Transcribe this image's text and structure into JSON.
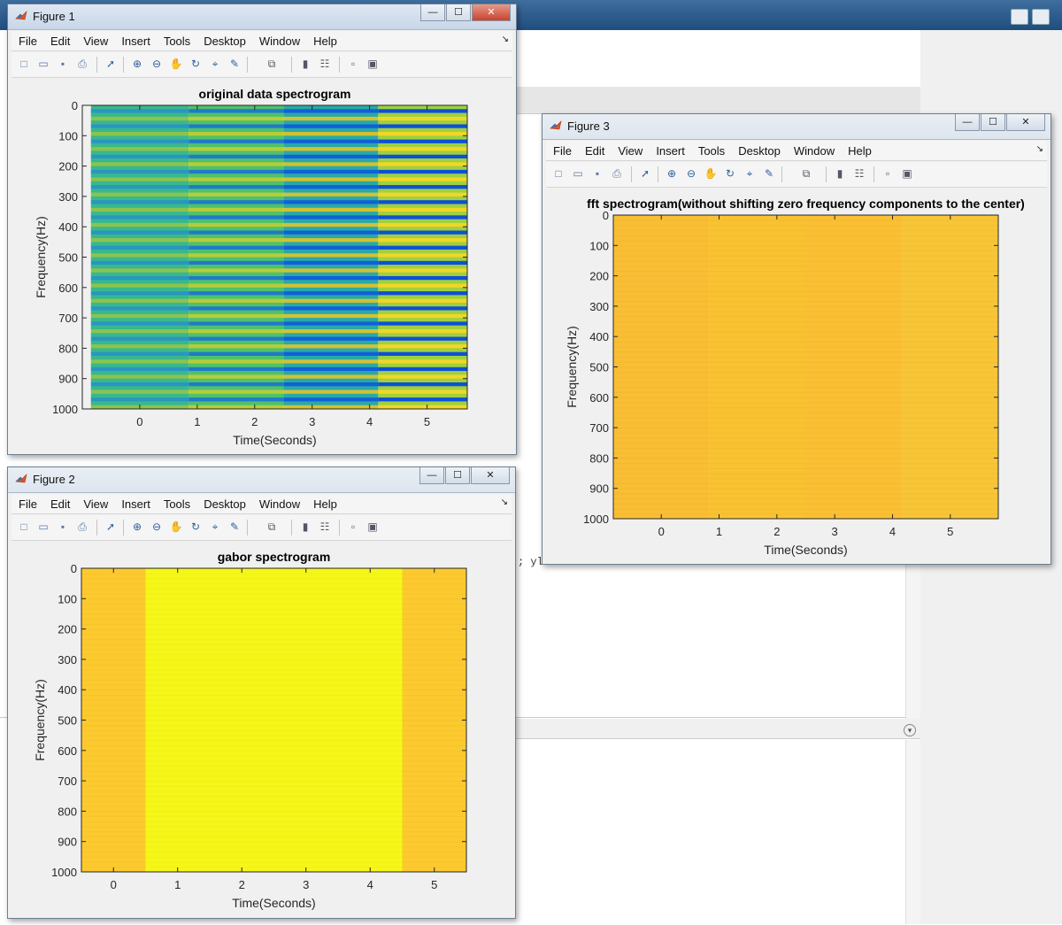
{
  "menu": [
    "File",
    "Edit",
    "View",
    "Insert",
    "Tools",
    "Desktop",
    "Window",
    "Help"
  ],
  "toolbar_icons": [
    "new-figure-icon",
    "open-file-icon",
    "save-icon",
    "print-icon",
    "pointer-icon",
    "zoom-in-icon",
    "zoom-out-icon",
    "pan-icon",
    "rotate-3d-icon",
    "data-cursor-icon",
    "brush-icon",
    "link-plot-icon",
    "colorbar-icon",
    "legend-icon",
    "hide-plot-tools-icon",
    "show-plot-tools-icon"
  ],
  "background": {
    "code_fragment": "; yl"
  },
  "figures": [
    {
      "window_title": "Figure 1",
      "active": true,
      "chart_data": {
        "type": "heatmap",
        "title": "original data spectrogram",
        "xlabel": "Time(Seconds)",
        "ylabel": "Frequency(Hz)",
        "xlim": [
          -1,
          5.7
        ],
        "ylim": [
          0,
          1000
        ],
        "y_reversed": true,
        "xticks": [
          0,
          1,
          2,
          3,
          4,
          5
        ],
        "yticks": [
          0,
          100,
          200,
          300,
          400,
          500,
          600,
          700,
          800,
          900,
          1000
        ],
        "segments": [
          {
            "x_start": -0.85,
            "x_end": 0.85,
            "pattern": "horizontal bands",
            "colors": [
              "#38b88d",
              "#2a96bf",
              "#8cc34f"
            ]
          },
          {
            "x_start": 0.85,
            "x_end": 2.5,
            "pattern": "horizontal bands",
            "colors": [
              "#4fc16b",
              "#1f7ac9",
              "#b7cc3a"
            ]
          },
          {
            "x_start": 2.5,
            "x_end": 4.15,
            "pattern": "horizontal bands",
            "colors": [
              "#29a9a6",
              "#1060d8",
              "#d2c134"
            ]
          },
          {
            "x_start": 4.15,
            "x_end": 5.82,
            "pattern": "horizontal bands",
            "colors": [
              "#9fd040",
              "#0d4fd6",
              "#f2d626"
            ]
          }
        ]
      }
    },
    {
      "window_title": "Figure 2",
      "active": false,
      "chart_data": {
        "type": "heatmap",
        "title": "gabor spectrogram",
        "xlabel": "Time(Seconds)",
        "ylabel": "Frequency(Hz)",
        "xlim": [
          -0.5,
          5.5
        ],
        "ylim": [
          0,
          1000
        ],
        "y_reversed": true,
        "xticks": [
          0,
          1,
          2,
          3,
          4,
          5
        ],
        "yticks": [
          0,
          100,
          200,
          300,
          400,
          500,
          600,
          700,
          800,
          900,
          1000
        ],
        "segments": [
          {
            "x_start": -0.5,
            "x_end": 0.5,
            "color": "#fcca2e"
          },
          {
            "x_start": 0.5,
            "x_end": 4.5,
            "color": "#f6f718"
          },
          {
            "x_start": 4.5,
            "x_end": 5.5,
            "color": "#fcca2e"
          }
        ]
      }
    },
    {
      "window_title": "Figure 3",
      "active": false,
      "chart_data": {
        "type": "heatmap",
        "title": "fft spectrogram(without shifting zero frequency components to the center)",
        "xlabel": "Time(Seconds)",
        "ylabel": "Frequency(Hz)",
        "xlim": [
          -0.83,
          5.83
        ],
        "ylim": [
          0,
          1000
        ],
        "y_reversed": true,
        "xticks": [
          0,
          1,
          2,
          3,
          4,
          5
        ],
        "yticks": [
          0,
          100,
          200,
          300,
          400,
          500,
          600,
          700,
          800,
          900,
          1000
        ],
        "segments": [
          {
            "x_start": -0.83,
            "x_end": 0.83,
            "color": "#f9be34"
          },
          {
            "x_start": 0.83,
            "x_end": 2.5,
            "color": "#f9c231"
          },
          {
            "x_start": 2.5,
            "x_end": 4.17,
            "color": "#fbbf33"
          },
          {
            "x_start": 4.17,
            "x_end": 5.83,
            "color": "#f8c536"
          }
        ]
      }
    }
  ]
}
